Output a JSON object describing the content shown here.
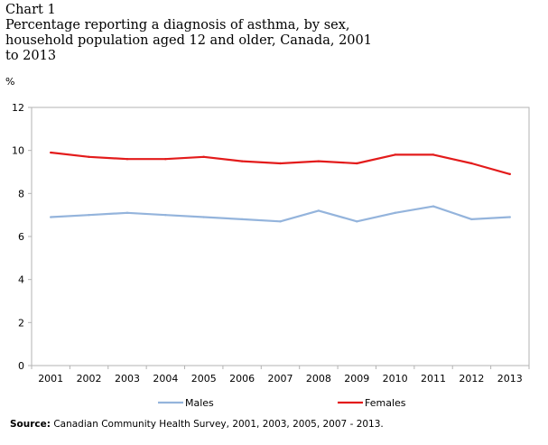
{
  "header": {
    "label": "Chart 1",
    "title_lines": [
      "Percentage reporting a diagnosis of asthma, by sex,",
      "household population aged 12 and older, Canada, 2001",
      "to 2013"
    ]
  },
  "chart_data": {
    "type": "line",
    "title": "Percentage reporting a diagnosis of asthma, by sex, household population aged 12 and older, Canada, 2001 to 2013",
    "ylabel": "%",
    "xlabel": "",
    "categories": [
      "2001",
      "2002",
      "2003",
      "2004",
      "2005",
      "2006",
      "2007",
      "2008",
      "2009",
      "2010",
      "2011",
      "2012",
      "2013"
    ],
    "ylim": [
      0,
      12
    ],
    "yticks": [
      0,
      2,
      4,
      6,
      8,
      10,
      12
    ],
    "grid": false,
    "legend_placement": "bottom",
    "series": [
      {
        "name": "Males",
        "color": "#94b4dc",
        "values": [
          6.9,
          7.0,
          7.1,
          7.0,
          6.9,
          6.8,
          6.7,
          7.2,
          6.7,
          7.1,
          7.4,
          6.8,
          6.9
        ]
      },
      {
        "name": "Females",
        "color": "#e31b1b",
        "values": [
          9.9,
          9.7,
          9.6,
          9.6,
          9.7,
          9.5,
          9.4,
          9.5,
          9.4,
          9.8,
          9.8,
          9.4,
          8.9
        ]
      }
    ]
  },
  "source": {
    "label": "Source:",
    "text": "Canadian Community Health Survey, 2001, 2003, 2005, 2007 - 2013."
  }
}
